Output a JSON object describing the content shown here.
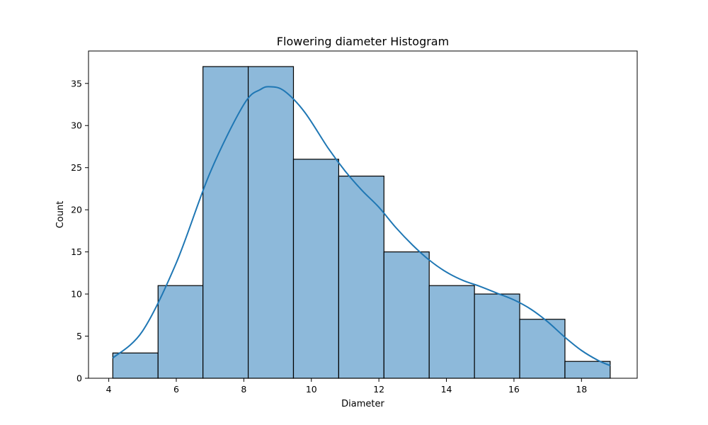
{
  "chart_data": {
    "type": "bar",
    "title": "Flowering diameter Histogram",
    "xlabel": "Diameter",
    "ylabel": "Count",
    "xlim": [
      3.4,
      19.65
    ],
    "ylim": [
      0,
      38.85
    ],
    "x_ticks": [
      "4",
      "6",
      "8",
      "10",
      "12",
      "14",
      "16",
      "18"
    ],
    "y_ticks": [
      "0",
      "5",
      "10",
      "15",
      "20",
      "25",
      "30",
      "35"
    ],
    "bins": [
      {
        "start": 4.12,
        "end": 5.46,
        "count": 3
      },
      {
        "start": 5.46,
        "end": 6.79,
        "count": 11
      },
      {
        "start": 6.79,
        "end": 8.13,
        "count": 37
      },
      {
        "start": 8.13,
        "end": 9.47,
        "count": 37
      },
      {
        "start": 9.47,
        "end": 10.81,
        "count": 26
      },
      {
        "start": 10.81,
        "end": 12.15,
        "count": 24
      },
      {
        "start": 12.15,
        "end": 13.49,
        "count": 15
      },
      {
        "start": 13.49,
        "end": 14.83,
        "count": 11
      },
      {
        "start": 14.83,
        "end": 16.17,
        "count": 10
      },
      {
        "start": 16.17,
        "end": 17.51,
        "count": 7
      },
      {
        "start": 17.51,
        "end": 18.85,
        "count": 2
      }
    ],
    "kde": {
      "x": [
        4.12,
        5.0,
        6.0,
        7.0,
        8.0,
        8.5,
        8.8,
        9.2,
        9.8,
        10.5,
        11.0,
        11.5,
        12.0,
        12.5,
        13.0,
        13.5,
        14.0,
        14.5,
        15.0,
        15.5,
        16.0,
        16.5,
        17.0,
        17.5,
        18.0,
        18.5,
        18.85
      ],
      "y": [
        2.4,
        5.6,
        13.7,
        24.4,
        32.5,
        34.3,
        34.6,
        34.1,
        31.6,
        27.3,
        24.6,
        22.3,
        20.3,
        17.9,
        15.8,
        14.0,
        12.6,
        11.6,
        10.9,
        10.1,
        9.3,
        8.2,
        6.7,
        4.9,
        3.3,
        2.1,
        1.5
      ]
    },
    "colors": {
      "bar_fill": "#8db9da",
      "bar_edge": "#000000",
      "kde_line": "#1f77b4"
    },
    "grid": false,
    "legend": "none"
  }
}
